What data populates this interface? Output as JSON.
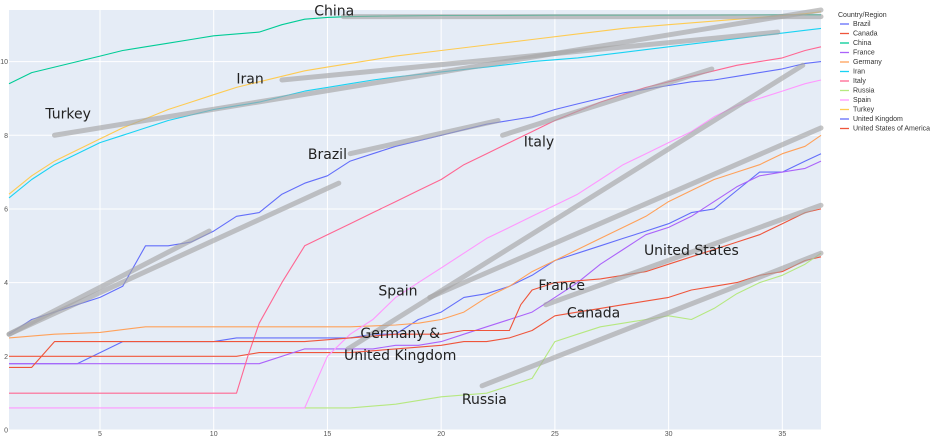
{
  "chart_data": {
    "type": "line",
    "xlim": [
      1,
      36.7
    ],
    "ylim": [
      0,
      11.4
    ],
    "x_ticks": [
      5,
      10,
      15,
      20,
      25,
      30,
      35
    ],
    "y_ticks": [
      0,
      2,
      4,
      6,
      8,
      10
    ],
    "grid": true,
    "plot_background": "#e5ecf6",
    "legend": {
      "title": "Country/Region",
      "placement": "right"
    },
    "series": [
      {
        "name": "Brazil",
        "color": "#636efa",
        "x": [
          1,
          2,
          4,
          6,
          7,
          8,
          9,
          10,
          11,
          12,
          13,
          14,
          15,
          16,
          17,
          18,
          19,
          20,
          21,
          22,
          23,
          24,
          25,
          26,
          27,
          28,
          29,
          30,
          31,
          32,
          33,
          34,
          35,
          36,
          36.7
        ],
        "y": [
          1.8,
          1.8,
          1.8,
          2.4,
          2.4,
          2.4,
          2.4,
          2.4,
          2.5,
          2.5,
          2.5,
          2.5,
          2.5,
          2.5,
          2.6,
          2.6,
          3.0,
          3.2,
          3.6,
          3.7,
          3.9,
          4.2,
          4.6,
          4.8,
          5.0,
          5.2,
          5.4,
          5.6,
          5.9,
          6.0,
          6.5,
          7.0,
          7.0,
          7.3,
          7.5
        ]
      },
      {
        "name": "Canada",
        "color": "#ef553b",
        "x": [
          1,
          2,
          3,
          5,
          8,
          11,
          12,
          14,
          16,
          18,
          20,
          21,
          22,
          23,
          24,
          25,
          26,
          27,
          28,
          29,
          30,
          31,
          32,
          33,
          34,
          35,
          36,
          36.7
        ],
        "y": [
          2.0,
          2.0,
          2.0,
          2.0,
          2.0,
          2.0,
          2.1,
          2.1,
          2.1,
          2.2,
          2.3,
          2.4,
          2.4,
          2.5,
          2.7,
          3.1,
          3.2,
          3.3,
          3.4,
          3.5,
          3.6,
          3.8,
          3.9,
          4.0,
          4.2,
          4.3,
          4.6,
          4.7
        ]
      },
      {
        "name": "China",
        "color": "#00cc96",
        "x": [
          1,
          2,
          3,
          4,
          5,
          6,
          7,
          8,
          9,
          10,
          11,
          12,
          13,
          14,
          15,
          16,
          18,
          20,
          22,
          25,
          30,
          35,
          36.7
        ],
        "y": [
          9.4,
          9.7,
          9.85,
          10.0,
          10.15,
          10.3,
          10.4,
          10.5,
          10.6,
          10.7,
          10.75,
          10.8,
          11.0,
          11.15,
          11.2,
          11.22,
          11.24,
          11.25,
          11.25,
          11.26,
          11.26,
          11.27,
          11.27
        ]
      },
      {
        "name": "France",
        "color": "#ab63fa",
        "x": [
          1,
          2,
          3,
          5,
          8,
          10,
          12,
          14,
          15,
          16,
          17,
          18,
          19,
          20,
          21,
          22,
          23,
          24,
          25,
          26,
          27,
          28,
          29,
          30,
          31,
          32,
          33,
          34,
          35,
          36,
          36.7
        ],
        "y": [
          1.8,
          1.8,
          1.8,
          1.8,
          1.8,
          1.8,
          1.8,
          2.2,
          2.2,
          2.2,
          2.2,
          2.3,
          2.3,
          2.4,
          2.6,
          2.8,
          3.0,
          3.2,
          3.6,
          4.0,
          4.5,
          4.9,
          5.3,
          5.5,
          5.8,
          6.2,
          6.6,
          6.9,
          7.0,
          7.1,
          7.3
        ]
      },
      {
        "name": "Germany",
        "color": "#ffa15a",
        "x": [
          1,
          3,
          5,
          7,
          10,
          12,
          14,
          16,
          18,
          19,
          20,
          21,
          22,
          23,
          24,
          25,
          26,
          27,
          28,
          29,
          30,
          31,
          32,
          33,
          34,
          35,
          36,
          36.7
        ],
        "y": [
          2.5,
          2.6,
          2.65,
          2.8,
          2.8,
          2.8,
          2.8,
          2.8,
          2.85,
          2.9,
          3.0,
          3.2,
          3.6,
          3.9,
          4.3,
          4.6,
          4.9,
          5.2,
          5.5,
          5.8,
          6.2,
          6.5,
          6.8,
          7.0,
          7.2,
          7.5,
          7.7,
          8.0
        ]
      },
      {
        "name": "Iran",
        "color": "#19d3f3",
        "x": [
          1,
          2,
          3,
          4,
          5,
          6,
          7,
          8,
          9,
          10,
          11,
          12,
          13,
          14,
          15,
          16,
          17,
          18,
          19,
          20,
          22,
          24,
          26,
          28,
          30,
          32,
          34,
          36,
          36.7
        ],
        "y": [
          6.3,
          6.8,
          7.2,
          7.5,
          7.8,
          8.0,
          8.2,
          8.4,
          8.55,
          8.7,
          8.8,
          8.9,
          9.05,
          9.2,
          9.3,
          9.4,
          9.5,
          9.58,
          9.65,
          9.72,
          9.85,
          10.0,
          10.1,
          10.25,
          10.4,
          10.55,
          10.7,
          10.85,
          10.9
        ]
      },
      {
        "name": "Italy",
        "color": "#ff6692",
        "x": [
          1,
          3,
          5,
          8,
          10,
          11,
          11.5,
          12,
          13,
          14,
          15,
          16,
          17,
          18,
          19,
          20,
          21,
          22,
          23,
          24,
          25,
          26,
          27,
          28,
          29,
          30,
          31,
          32,
          33,
          34,
          35,
          36,
          36.7
        ],
        "y": [
          1.0,
          1.0,
          1.0,
          1.0,
          1.0,
          1.0,
          2.0,
          2.9,
          4.0,
          5.0,
          5.3,
          5.6,
          5.9,
          6.2,
          6.5,
          6.8,
          7.2,
          7.5,
          7.8,
          8.1,
          8.4,
          8.65,
          8.9,
          9.1,
          9.3,
          9.45,
          9.6,
          9.75,
          9.9,
          10.0,
          10.1,
          10.3,
          10.4
        ]
      },
      {
        "name": "Russia",
        "color": "#b6e880",
        "x": [
          14,
          16,
          18,
          20,
          22,
          23,
          24,
          25,
          26,
          27,
          28,
          29,
          30,
          31,
          32,
          33,
          34,
          35,
          36,
          36.7
        ],
        "y": [
          0.6,
          0.6,
          0.7,
          0.9,
          1.0,
          1.2,
          1.4,
          2.4,
          2.6,
          2.8,
          2.9,
          3.0,
          3.1,
          3.0,
          3.3,
          3.7,
          4.0,
          4.2,
          4.5,
          4.8
        ]
      },
      {
        "name": "Spain",
        "color": "#ff97ff",
        "x": [
          1,
          3,
          5,
          8,
          10,
          12,
          14,
          15,
          16,
          17,
          18,
          19,
          20,
          21,
          22,
          23,
          24,
          25,
          26,
          27,
          28,
          29,
          30,
          31,
          32,
          33,
          34,
          35,
          36,
          36.7
        ],
        "y": [
          0.6,
          0.6,
          0.6,
          0.6,
          0.6,
          0.6,
          0.6,
          2.0,
          2.6,
          3.0,
          3.6,
          4.0,
          4.4,
          4.8,
          5.2,
          5.5,
          5.8,
          6.1,
          6.4,
          6.8,
          7.2,
          7.5,
          7.8,
          8.1,
          8.5,
          8.8,
          9.0,
          9.2,
          9.4,
          9.5
        ]
      },
      {
        "name": "Turkey",
        "color": "#fecb52",
        "x": [
          1,
          2,
          3,
          4,
          5,
          6,
          7,
          8,
          9,
          10,
          11,
          12,
          13,
          14,
          15,
          16,
          18,
          20,
          22,
          24,
          26,
          28,
          30,
          32,
          34,
          36,
          36.7
        ],
        "y": [
          6.4,
          6.9,
          7.3,
          7.6,
          7.9,
          8.2,
          8.45,
          8.7,
          8.9,
          9.1,
          9.3,
          9.45,
          9.6,
          9.75,
          9.85,
          9.95,
          10.15,
          10.3,
          10.45,
          10.6,
          10.75,
          10.9,
          11.0,
          11.1,
          11.2,
          11.3,
          11.35
        ]
      },
      {
        "name": "United Kingdom",
        "color": "#636efa",
        "x": [
          1,
          2,
          3,
          4,
          5,
          6,
          7,
          8,
          9,
          10,
          11,
          12,
          13,
          14,
          15,
          16,
          17,
          18,
          19,
          20,
          21,
          22,
          23,
          24,
          25,
          26,
          27,
          28,
          29,
          30,
          31,
          32,
          33,
          34,
          35,
          36,
          36.7
        ],
        "y": [
          2.6,
          3.0,
          3.2,
          3.4,
          3.6,
          3.9,
          5.0,
          5.0,
          5.1,
          5.4,
          5.8,
          5.9,
          6.4,
          6.7,
          6.9,
          7.3,
          7.5,
          7.7,
          7.85,
          8.0,
          8.15,
          8.3,
          8.4,
          8.5,
          8.7,
          8.85,
          9.0,
          9.15,
          9.25,
          9.35,
          9.45,
          9.5,
          9.6,
          9.7,
          9.8,
          9.95,
          10.0
        ]
      },
      {
        "name": "United States of America",
        "color": "#ef553b",
        "x": [
          1,
          2,
          3,
          5,
          8,
          10,
          12,
          14,
          16,
          18,
          20,
          21,
          22,
          23,
          23.5,
          24,
          25,
          26,
          27,
          28,
          29,
          30,
          31,
          32,
          33,
          34,
          35,
          36,
          36.7
        ],
        "y": [
          1.7,
          1.7,
          2.4,
          2.4,
          2.4,
          2.4,
          2.4,
          2.4,
          2.5,
          2.6,
          2.6,
          2.7,
          2.7,
          2.7,
          3.4,
          3.8,
          4.0,
          4.05,
          4.1,
          4.2,
          4.3,
          4.5,
          4.7,
          4.9,
          5.1,
          5.3,
          5.6,
          5.9,
          6.0
        ]
      }
    ],
    "annotations": [
      {
        "text": "China",
        "x": 15.3,
        "y": 11.25
      },
      {
        "text": "Turkey",
        "x": 3.6,
        "y": 8.45
      },
      {
        "text": "Iran",
        "x": 11.6,
        "y": 9.4
      },
      {
        "text": "Brazil",
        "x": 15.0,
        "y": 7.35
      },
      {
        "text": "Italy",
        "x": 24.3,
        "y": 7.7
      },
      {
        "text": "Spain",
        "x": 18.1,
        "y": 3.65
      },
      {
        "text": "France",
        "x": 25.3,
        "y": 3.8
      },
      {
        "text": "United States",
        "x": 31.0,
        "y": 4.75
      },
      {
        "text": "Canada",
        "x": 26.7,
        "y": 3.05
      },
      {
        "text": "Germany &",
        "x": 18.2,
        "y": 2.5
      },
      {
        "text": "United Kingdom",
        "x": 18.2,
        "y": 1.9
      },
      {
        "text": "Russia",
        "x": 21.9,
        "y": 0.7
      }
    ],
    "trend_lines": [
      {
        "from": [
          15.7,
          11.22
        ],
        "to": [
          36.7,
          11.22
        ]
      },
      {
        "from": [
          3.0,
          8.0
        ],
        "to": [
          36.7,
          11.4
        ]
      },
      {
        "from": [
          13.0,
          9.5
        ],
        "to": [
          34.8,
          10.8
        ]
      },
      {
        "from": [
          16.0,
          7.5
        ],
        "to": [
          22.5,
          8.4
        ]
      },
      {
        "from": [
          22.7,
          8.0
        ],
        "to": [
          31.9,
          9.8
        ]
      },
      {
        "from": [
          19.5,
          3.6
        ],
        "to": [
          36.7,
          8.2
        ]
      },
      {
        "from": [
          24.6,
          3.4
        ],
        "to": [
          36.7,
          6.1
        ]
      },
      {
        "from": [
          21.8,
          1.2
        ],
        "to": [
          36.7,
          4.8
        ]
      },
      {
        "from": [
          15.9,
          2.2
        ],
        "to": [
          35.9,
          9.9
        ]
      },
      {
        "from": [
          1.0,
          2.6
        ],
        "to": [
          9.8,
          5.4
        ]
      },
      {
        "from": [
          1.0,
          2.6
        ],
        "to": [
          15.5,
          6.7
        ]
      }
    ]
  }
}
